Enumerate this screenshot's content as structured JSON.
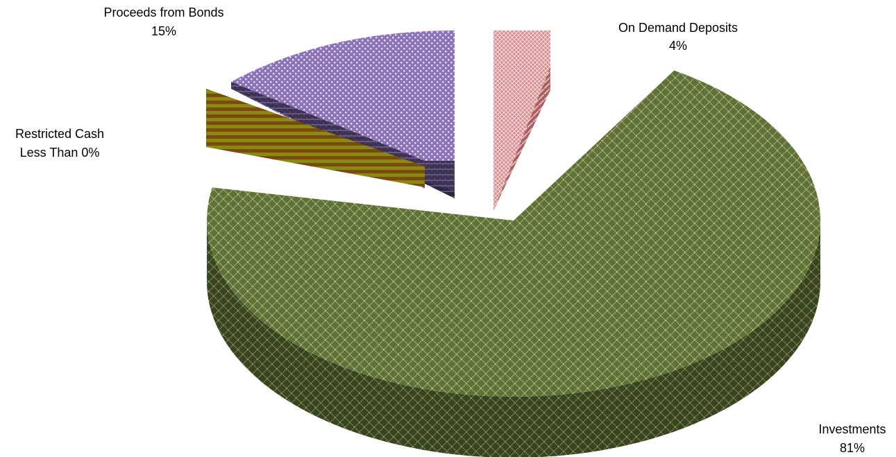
{
  "chart_data": {
    "type": "pie",
    "title": "",
    "slices": [
      {
        "name": "On Demand Deposits",
        "percent_label": "4%",
        "value": 4,
        "color": "#c87a7a",
        "pattern": "checker"
      },
      {
        "name": "Investments",
        "percent_label": "81%",
        "value": 81,
        "color": "#5f7136",
        "pattern": "diamond"
      },
      {
        "name": "Restricted Cash",
        "name2": "Less Than 0%",
        "percent_label": "",
        "value": 0.3,
        "color": "#8a8a10",
        "pattern": "stripes"
      },
      {
        "name": "Proceeds from Bonds",
        "percent_label": "15%",
        "value": 15,
        "color": "#8b72b8",
        "pattern": "dots"
      }
    ],
    "style": "3d-exploded",
    "legend": "none"
  }
}
